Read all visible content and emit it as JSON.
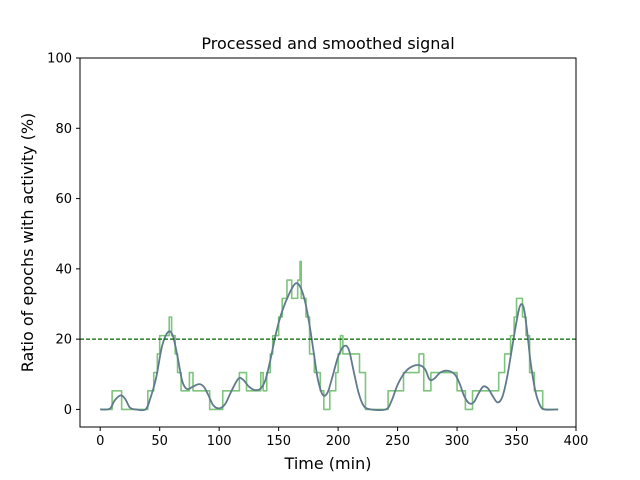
{
  "chart_data": {
    "type": "line",
    "title": "Processed and smoothed signal",
    "xlabel": "Time (min)",
    "ylabel": "Ratio of epochs with activity (%)",
    "xlim": [
      -17,
      400
    ],
    "ylim": [
      -5,
      100
    ],
    "xticks": [
      0,
      50,
      100,
      150,
      200,
      250,
      300,
      350,
      400
    ],
    "yticks": [
      0,
      20,
      40,
      60,
      80,
      100
    ],
    "threshold": {
      "y": 20,
      "color": "#006400",
      "style": "dashed"
    },
    "grid": false,
    "legend": "none",
    "series": [
      {
        "style": "step",
        "color": "#7dc47d",
        "points": [
          [
            0,
            0
          ],
          [
            10,
            0
          ],
          [
            10,
            5.3
          ],
          [
            18,
            5.3
          ],
          [
            18,
            0
          ],
          [
            40,
            0
          ],
          [
            40,
            5.3
          ],
          [
            45,
            5.3
          ],
          [
            45,
            10.5
          ],
          [
            48,
            10.5
          ],
          [
            48,
            15.8
          ],
          [
            50,
            15.8
          ],
          [
            50,
            21
          ],
          [
            58,
            21
          ],
          [
            58,
            26.3
          ],
          [
            60,
            26.3
          ],
          [
            60,
            21
          ],
          [
            63,
            21
          ],
          [
            63,
            15.8
          ],
          [
            65,
            15.8
          ],
          [
            65,
            10.5
          ],
          [
            68,
            10.5
          ],
          [
            68,
            5.3
          ],
          [
            75,
            5.3
          ],
          [
            75,
            10.5
          ],
          [
            78,
            10.5
          ],
          [
            78,
            5.3
          ],
          [
            92,
            5.3
          ],
          [
            92,
            0
          ],
          [
            103,
            0
          ],
          [
            103,
            5.3
          ],
          [
            117,
            5.3
          ],
          [
            117,
            10.5
          ],
          [
            123,
            10.5
          ],
          [
            123,
            5.3
          ],
          [
            135,
            5.3
          ],
          [
            135,
            10.5
          ],
          [
            137,
            10.5
          ],
          [
            137,
            5.3
          ],
          [
            140,
            5.3
          ],
          [
            140,
            10.5
          ],
          [
            143,
            10.5
          ],
          [
            143,
            15.8
          ],
          [
            145,
            15.8
          ],
          [
            145,
            21
          ],
          [
            150,
            21
          ],
          [
            150,
            26.3
          ],
          [
            153,
            26.3
          ],
          [
            153,
            31.6
          ],
          [
            157,
            31.6
          ],
          [
            157,
            36.8
          ],
          [
            161,
            36.8
          ],
          [
            161,
            31.6
          ],
          [
            166,
            31.6
          ],
          [
            166,
            36.8
          ],
          [
            168,
            36.8
          ],
          [
            168,
            42.1
          ],
          [
            169,
            42.1
          ],
          [
            169,
            31.6
          ],
          [
            173,
            31.6
          ],
          [
            173,
            26.3
          ],
          [
            176,
            26.3
          ],
          [
            176,
            15.8
          ],
          [
            180,
            15.8
          ],
          [
            180,
            10.5
          ],
          [
            185,
            10.5
          ],
          [
            185,
            5.3
          ],
          [
            188,
            5.3
          ],
          [
            188,
            0
          ],
          [
            193,
            0
          ],
          [
            193,
            5.3
          ],
          [
            198,
            5.3
          ],
          [
            198,
            10.5
          ],
          [
            200,
            10.5
          ],
          [
            200,
            15.8
          ],
          [
            202,
            15.8
          ],
          [
            202,
            21
          ],
          [
            204,
            21
          ],
          [
            204,
            15.8
          ],
          [
            218,
            15.8
          ],
          [
            218,
            10.5
          ],
          [
            223,
            10.5
          ],
          [
            223,
            0
          ],
          [
            242,
            0
          ],
          [
            242,
            5.3
          ],
          [
            255,
            5.3
          ],
          [
            255,
            10.5
          ],
          [
            268,
            10.5
          ],
          [
            268,
            15.8
          ],
          [
            272,
            15.8
          ],
          [
            272,
            5.3
          ],
          [
            278,
            5.3
          ],
          [
            278,
            10.5
          ],
          [
            300,
            10.5
          ],
          [
            300,
            5.3
          ],
          [
            307,
            5.3
          ],
          [
            307,
            0
          ],
          [
            313,
            0
          ],
          [
            313,
            5.3
          ],
          [
            335,
            5.3
          ],
          [
            335,
            10.5
          ],
          [
            340,
            10.5
          ],
          [
            340,
            15.8
          ],
          [
            345,
            15.8
          ],
          [
            345,
            21
          ],
          [
            348,
            21
          ],
          [
            348,
            26.3
          ],
          [
            350,
            26.3
          ],
          [
            350,
            31.6
          ],
          [
            355,
            31.6
          ],
          [
            355,
            26.3
          ],
          [
            358,
            26.3
          ],
          [
            358,
            21
          ],
          [
            361,
            21
          ],
          [
            361,
            10.5
          ],
          [
            365,
            10.5
          ],
          [
            365,
            5.3
          ],
          [
            372,
            5.3
          ],
          [
            372,
            0
          ],
          [
            385,
            0
          ]
        ]
      },
      {
        "style": "smooth",
        "color": "#5f7a8c",
        "points": [
          [
            0,
            0
          ],
          [
            8,
            0.2
          ],
          [
            12,
            2.5
          ],
          [
            17,
            4
          ],
          [
            21,
            3
          ],
          [
            25,
            0.5
          ],
          [
            30,
            0
          ],
          [
            38,
            0
          ],
          [
            42,
            3
          ],
          [
            47,
            9
          ],
          [
            52,
            18
          ],
          [
            57,
            22
          ],
          [
            61,
            21
          ],
          [
            65,
            15
          ],
          [
            69,
            8
          ],
          [
            73,
            5.8
          ],
          [
            78,
            6.5
          ],
          [
            83,
            7.2
          ],
          [
            87,
            6.5
          ],
          [
            91,
            4
          ],
          [
            95,
            1.2
          ],
          [
            100,
            0.3
          ],
          [
            105,
            1.5
          ],
          [
            110,
            5
          ],
          [
            116,
            8.7
          ],
          [
            120,
            8.5
          ],
          [
            125,
            6.5
          ],
          [
            130,
            5.5
          ],
          [
            135,
            6
          ],
          [
            139,
            8.5
          ],
          [
            143,
            14
          ],
          [
            148,
            22
          ],
          [
            153,
            28
          ],
          [
            159,
            33
          ],
          [
            164,
            35.8
          ],
          [
            168,
            35
          ],
          [
            172,
            31
          ],
          [
            176,
            24
          ],
          [
            180,
            15
          ],
          [
            183,
            8.5
          ],
          [
            187,
            4.2
          ],
          [
            191,
            4.7
          ],
          [
            195,
            9
          ],
          [
            200,
            15
          ],
          [
            205,
            18
          ],
          [
            209,
            17
          ],
          [
            213,
            11
          ],
          [
            217,
            5
          ],
          [
            221,
            1.3
          ],
          [
            226,
            0.1
          ],
          [
            240,
            0
          ],
          [
            245,
            2.5
          ],
          [
            250,
            7
          ],
          [
            256,
            10.5
          ],
          [
            262,
            12.2
          ],
          [
            268,
            12.6
          ],
          [
            273,
            11.5
          ],
          [
            277,
            8.5
          ],
          [
            281,
            8.8
          ],
          [
            286,
            10.5
          ],
          [
            292,
            11
          ],
          [
            298,
            10
          ],
          [
            302,
            7.5
          ],
          [
            306,
            3.8
          ],
          [
            310,
            1.8
          ],
          [
            314,
            2
          ],
          [
            318,
            4.5
          ],
          [
            322,
            6.5
          ],
          [
            326,
            6
          ],
          [
            330,
            3.8
          ],
          [
            334,
            2
          ],
          [
            338,
            3.5
          ],
          [
            342,
            9
          ],
          [
            346,
            17
          ],
          [
            350,
            25
          ],
          [
            353,
            29.5
          ],
          [
            356,
            29
          ],
          [
            359,
            22
          ],
          [
            362,
            13
          ],
          [
            366,
            5
          ],
          [
            370,
            1
          ],
          [
            374,
            0
          ],
          [
            385,
            0
          ]
        ]
      }
    ]
  }
}
